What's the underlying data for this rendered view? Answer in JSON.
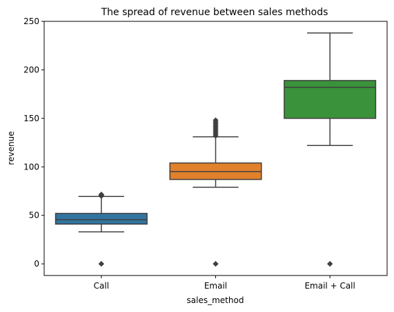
{
  "chart_data": {
    "type": "box",
    "title": "The spread of revenue between sales methods",
    "xlabel": "sales_method",
    "ylabel": "revenue",
    "ylim": [
      -12,
      250
    ],
    "yticks": [
      0,
      50,
      100,
      150,
      200,
      250
    ],
    "grid": false,
    "categories": [
      "Call",
      "Email",
      "Email + Call"
    ],
    "boxes": [
      {
        "category": "Call",
        "color": "#3274a1",
        "whisker_low": 33,
        "q1": 41,
        "median": 45.5,
        "q3": 52,
        "whisker_high": 69.5,
        "outliers": [
          0,
          70,
          71,
          71.5
        ]
      },
      {
        "category": "Email",
        "color": "#e1812c",
        "whisker_low": 79,
        "q1": 87,
        "median": 95,
        "q3": 104,
        "whisker_high": 131,
        "outliers": [
          0,
          132,
          134,
          136,
          138,
          140,
          142,
          144,
          146,
          148
        ]
      },
      {
        "category": "Email + Call",
        "color": "#3a923a",
        "whisker_low": 122,
        "q1": 150,
        "median": 182,
        "q3": 189,
        "whisker_high": 238,
        "outliers": [
          0
        ]
      }
    ]
  }
}
